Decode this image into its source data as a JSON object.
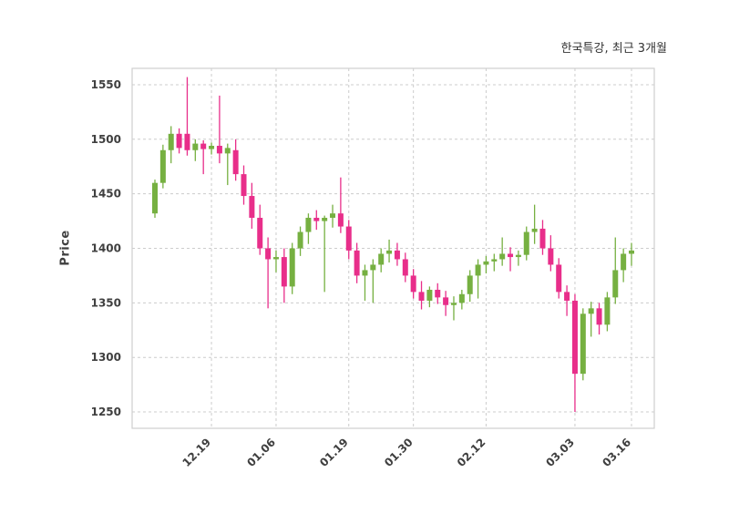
{
  "title": "한국특강, 최근 3개월",
  "chart_data": {
    "type": "candlestick",
    "title": "한국특강, 최근 3개월",
    "ylabel": "Price",
    "ylim": [
      1235,
      1565
    ],
    "yticks": [
      1250,
      1300,
      1350,
      1400,
      1450,
      1500,
      1550
    ],
    "xticks": [
      {
        "index": 7,
        "label": "12.19"
      },
      {
        "index": 15,
        "label": "01.06"
      },
      {
        "index": 24,
        "label": "01.19"
      },
      {
        "index": 32,
        "label": "01.30"
      },
      {
        "index": 41,
        "label": "02.12"
      },
      {
        "index": 52,
        "label": "03.03"
      },
      {
        "index": 59,
        "label": "03.16"
      }
    ],
    "grid": "dashed",
    "legend": "none",
    "colors": {
      "up": "#76b041",
      "down": "#e82e8a",
      "grid": "#cccccc",
      "border": "#cfcfcf",
      "text": "#3f3f3f",
      "background": "#ffffff"
    },
    "candles_format": [
      "open",
      "high",
      "low",
      "close"
    ],
    "candles": [
      [
        1432,
        1463,
        1428,
        1460
      ],
      [
        1460,
        1495,
        1455,
        1490
      ],
      [
        1490,
        1512,
        1478,
        1505
      ],
      [
        1505,
        1510,
        1487,
        1492
      ],
      [
        1505,
        1557,
        1485,
        1490
      ],
      [
        1490,
        1500,
        1480,
        1496
      ],
      [
        1496,
        1499,
        1468,
        1491
      ],
      [
        1491,
        1497,
        1486,
        1494
      ],
      [
        1494,
        1540,
        1478,
        1487
      ],
      [
        1487,
        1496,
        1458,
        1492
      ],
      [
        1490,
        1500,
        1462,
        1468
      ],
      [
        1468,
        1476,
        1440,
        1448
      ],
      [
        1448,
        1460,
        1418,
        1428
      ],
      [
        1428,
        1440,
        1394,
        1400
      ],
      [
        1400,
        1410,
        1345,
        1390
      ],
      [
        1390,
        1398,
        1378,
        1392
      ],
      [
        1392,
        1400,
        1350,
        1365
      ],
      [
        1365,
        1405,
        1358,
        1400
      ],
      [
        1400,
        1420,
        1393,
        1415
      ],
      [
        1415,
        1432,
        1404,
        1428
      ],
      [
        1428,
        1435,
        1417,
        1425
      ],
      [
        1425,
        1430,
        1360,
        1428
      ],
      [
        1428,
        1440,
        1419,
        1432
      ],
      [
        1432,
        1465,
        1414,
        1420
      ],
      [
        1420,
        1426,
        1390,
        1398
      ],
      [
        1398,
        1405,
        1368,
        1375
      ],
      [
        1375,
        1385,
        1352,
        1380
      ],
      [
        1380,
        1390,
        1350,
        1385
      ],
      [
        1385,
        1400,
        1378,
        1395
      ],
      [
        1395,
        1408,
        1387,
        1398
      ],
      [
        1398,
        1405,
        1384,
        1390
      ],
      [
        1390,
        1396,
        1369,
        1375
      ],
      [
        1375,
        1381,
        1354,
        1360
      ],
      [
        1360,
        1370,
        1344,
        1352
      ],
      [
        1352,
        1365,
        1346,
        1362
      ],
      [
        1362,
        1368,
        1349,
        1355
      ],
      [
        1355,
        1361,
        1338,
        1348
      ],
      [
        1348,
        1356,
        1334,
        1350
      ],
      [
        1350,
        1362,
        1344,
        1358
      ],
      [
        1358,
        1380,
        1351,
        1375
      ],
      [
        1375,
        1390,
        1354,
        1385
      ],
      [
        1385,
        1393,
        1377,
        1388
      ],
      [
        1388,
        1395,
        1379,
        1390
      ],
      [
        1390,
        1410,
        1384,
        1395
      ],
      [
        1395,
        1401,
        1379,
        1392
      ],
      [
        1392,
        1398,
        1384,
        1394
      ],
      [
        1394,
        1420,
        1389,
        1415
      ],
      [
        1415,
        1440,
        1404,
        1418
      ],
      [
        1418,
        1426,
        1394,
        1400
      ],
      [
        1400,
        1412,
        1379,
        1385
      ],
      [
        1385,
        1391,
        1354,
        1360
      ],
      [
        1360,
        1366,
        1338,
        1352
      ],
      [
        1352,
        1358,
        1250,
        1285
      ],
      [
        1285,
        1345,
        1279,
        1340
      ],
      [
        1340,
        1351,
        1319,
        1345
      ],
      [
        1345,
        1350,
        1321,
        1330
      ],
      [
        1330,
        1360,
        1324,
        1355
      ],
      [
        1355,
        1410,
        1349,
        1380
      ],
      [
        1380,
        1400,
        1369,
        1395
      ],
      [
        1395,
        1405,
        1384,
        1398
      ]
    ]
  }
}
